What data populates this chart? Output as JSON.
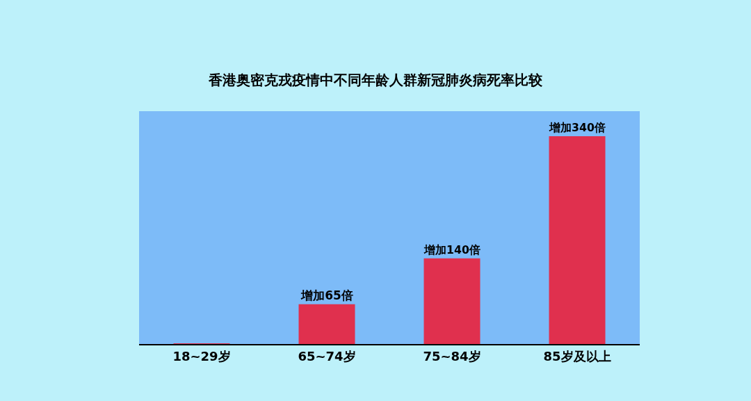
{
  "chart_data": {
    "type": "bar",
    "title": "香港奥密克戎疫情中不同年龄人群新冠肺炎病死率比较",
    "categories": [
      "18~29岁",
      "65~74岁",
      "75~84岁",
      "85岁及以上"
    ],
    "values": [
      1,
      65,
      140,
      340
    ],
    "value_labels": [
      null,
      "增加65倍",
      "增加140倍",
      "增加340倍"
    ],
    "color": "#e0304e"
  }
}
